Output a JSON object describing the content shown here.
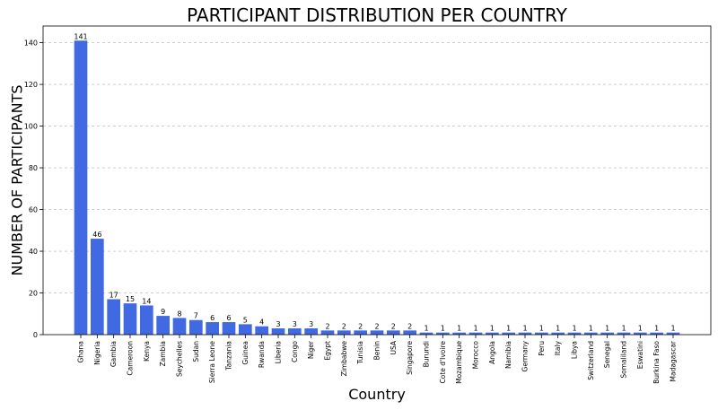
{
  "chart_data": {
    "type": "bar",
    "title": "PARTICIPANT DISTRIBUTION PER COUNTRY",
    "xlabel": "Country",
    "ylabel": "NUMBER OF PARTICIPANTS",
    "ylim": [
      0,
      148
    ],
    "yticks": [
      0,
      20,
      40,
      60,
      80,
      100,
      120,
      140
    ],
    "grid": "y-dashed",
    "bar_color": "#4169e1",
    "categories": [
      "Ghana",
      "Nigeria",
      "Gambia",
      "Cameroon",
      "Kenya",
      "Zambia",
      "Seychelles",
      "Sudan",
      "Sierra Leone",
      "Tanzania",
      "Guinea",
      "Rwanda",
      "Liberia",
      "Congo",
      "Niger",
      "Egypt",
      "Zimbabwe",
      "Tunisia",
      "Benin",
      "USA",
      "Singapore",
      "Burundi",
      "Cote d'Ivoire",
      "Mozambique",
      "Morocco",
      "Angola",
      "Namibia",
      "Germany",
      "Peru",
      "Italy",
      "Libya",
      "Switzerland",
      "Senegal",
      "Somaliland",
      "Eswatini",
      "Burkina Faso",
      "Madagascar"
    ],
    "values": [
      141,
      46,
      17,
      15,
      14,
      9,
      8,
      7,
      6,
      6,
      5,
      4,
      3,
      3,
      3,
      2,
      2,
      2,
      2,
      2,
      2,
      1,
      1,
      1,
      1,
      1,
      1,
      1,
      1,
      1,
      1,
      1,
      1,
      1,
      1,
      1,
      1
    ]
  }
}
